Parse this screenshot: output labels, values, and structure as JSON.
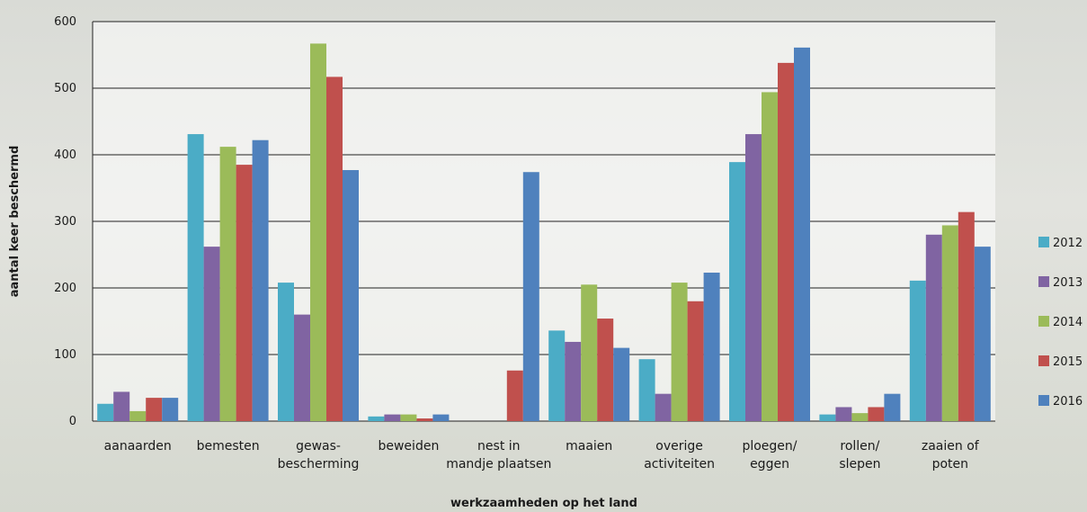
{
  "chart_data": {
    "type": "bar",
    "xlabel": "werkzaamheden op het land",
    "ylabel": "aantal keer beschermd",
    "ylim": [
      0,
      600
    ],
    "yticks": [
      0,
      100,
      200,
      300,
      400,
      500,
      600
    ],
    "grid": true,
    "legend_position": "right",
    "categories": [
      [
        "aanaarden"
      ],
      [
        "bemesten"
      ],
      [
        "gewas-",
        "bescherming"
      ],
      [
        "beweiden"
      ],
      [
        "nest in",
        "mandje plaatsen"
      ],
      [
        "maaien"
      ],
      [
        "overige",
        "activiteiten"
      ],
      [
        "ploegen/",
        "eggen"
      ],
      [
        "rollen/",
        "slepen"
      ],
      [
        "zaaien of",
        "poten"
      ]
    ],
    "series": [
      {
        "name": "2012",
        "color": "#4bacc6",
        "values": [
          26,
          431,
          208,
          7,
          0,
          136,
          93,
          389,
          10,
          211
        ]
      },
      {
        "name": "2013",
        "color": "#8064a2",
        "values": [
          44,
          262,
          160,
          10,
          0,
          119,
          41,
          431,
          21,
          280
        ]
      },
      {
        "name": "2014",
        "color": "#9bbb59",
        "values": [
          15,
          412,
          567,
          10,
          0,
          205,
          208,
          494,
          12,
          294
        ]
      },
      {
        "name": "2015",
        "color": "#c0504d",
        "values": [
          35,
          385,
          517,
          4,
          76,
          154,
          180,
          538,
          21,
          314
        ]
      },
      {
        "name": "2016",
        "color": "#4f81bd",
        "values": [
          35,
          422,
          377,
          10,
          374,
          110,
          223,
          561,
          41,
          262
        ]
      }
    ]
  }
}
